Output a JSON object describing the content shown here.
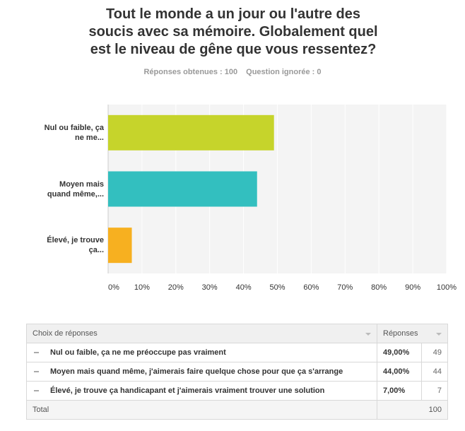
{
  "chart_data": {
    "type": "bar",
    "orientation": "horizontal",
    "title": "Tout le monde a un jour ou l'autre des soucis avec sa mémoire. Globalement quel est le niveau de gêne que vous ressentez?",
    "answered": "Réponses obtenues : 100",
    "skipped": "Question ignorée : 0",
    "categories": [
      "Nul ou faible, ça ne me...",
      "Moyen mais quand même,...",
      "Élevé, je trouve ça..."
    ],
    "values": [
      49,
      44,
      7
    ],
    "colors": [
      "#c6d42b",
      "#33bfbf",
      "#f7b020"
    ],
    "xlim": [
      0,
      100
    ],
    "xticks": [
      {
        "value": 0,
        "label": "0%"
      },
      {
        "value": 10,
        "label": "10%"
      },
      {
        "value": 20,
        "label": "20%"
      },
      {
        "value": 30,
        "label": "30%"
      },
      {
        "value": 40,
        "label": "40%"
      },
      {
        "value": 50,
        "label": "50%"
      },
      {
        "value": 60,
        "label": "60%"
      },
      {
        "value": 70,
        "label": "70%"
      },
      {
        "value": 80,
        "label": "80%"
      },
      {
        "value": 90,
        "label": "90%"
      },
      {
        "value": 100,
        "label": "100%"
      }
    ],
    "grid": true
  },
  "table": {
    "headers": [
      "Choix de réponses",
      "Réponses"
    ],
    "rows": [
      [
        "Nul ou faible, ça ne me préoccupe pas vraiment",
        "49,00%",
        "49"
      ],
      [
        "Moyen mais quand même, j'aimerais faire quelque chose pour que ça s'arrange",
        "44,00%",
        "44"
      ],
      [
        "Élevé, je trouve ça handicapant et j'aimerais vraiment trouver une solution",
        "7,00%",
        "7"
      ]
    ],
    "total": [
      "Total",
      "100"
    ]
  }
}
